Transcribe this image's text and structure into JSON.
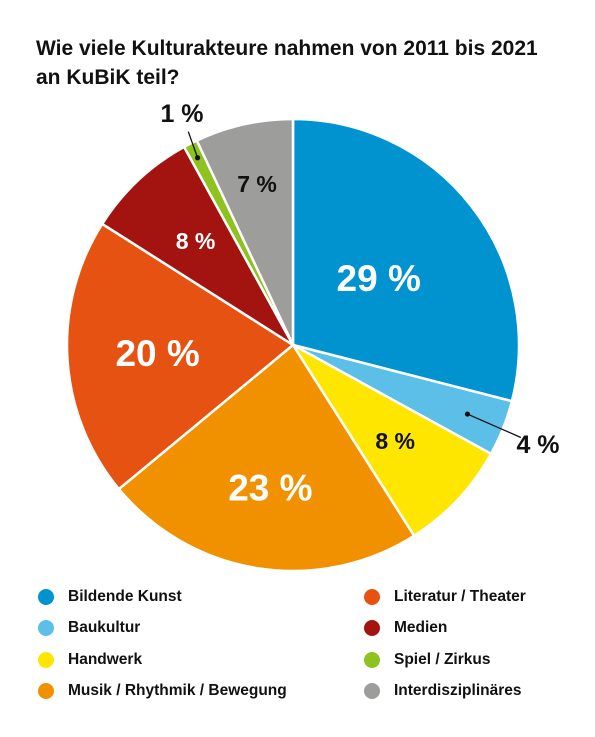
{
  "chart_data": {
    "type": "pie",
    "title": "Wie viele Kulturakteure nahmen von 2011 bis 2021 an KuBiK teil?",
    "start_angle_deg": 0,
    "direction": "clockwise",
    "slices": [
      {
        "label": "Bildende Kunst",
        "value": 29,
        "display": "29 %",
        "color": "#0093d0"
      },
      {
        "label": "Baukultur",
        "value": 4,
        "display": "4 %",
        "color": "#5bbfe8"
      },
      {
        "label": "Handwerk",
        "value": 8,
        "display": "8 %",
        "color": "#ffe600"
      },
      {
        "label": "Musik / Rhythmik / Bewegung",
        "value": 23,
        "display": "23 %",
        "color": "#f29100"
      },
      {
        "label": "Literatur / Theater",
        "value": 20,
        "display": "20 %",
        "color": "#e65212"
      },
      {
        "label": "Medien",
        "value": 8,
        "display": "8 %",
        "color": "#a31410"
      },
      {
        "label": "Spiel / Zirkus",
        "value": 1,
        "display": "1 %",
        "color": "#8dc21f"
      },
      {
        "label": "Interdisziplinäres",
        "value": 7,
        "display": "7 %",
        "color": "#9d9d9c"
      }
    ],
    "legend": {
      "columns": [
        [
          "Bildende Kunst",
          "Baukultur",
          "Handwerk",
          "Musik / Rhythmik / Bewegung"
        ],
        [
          "Literatur / Theater",
          "Medien",
          "Spiel / Zirkus",
          "Interdisziplinäres"
        ]
      ]
    }
  }
}
